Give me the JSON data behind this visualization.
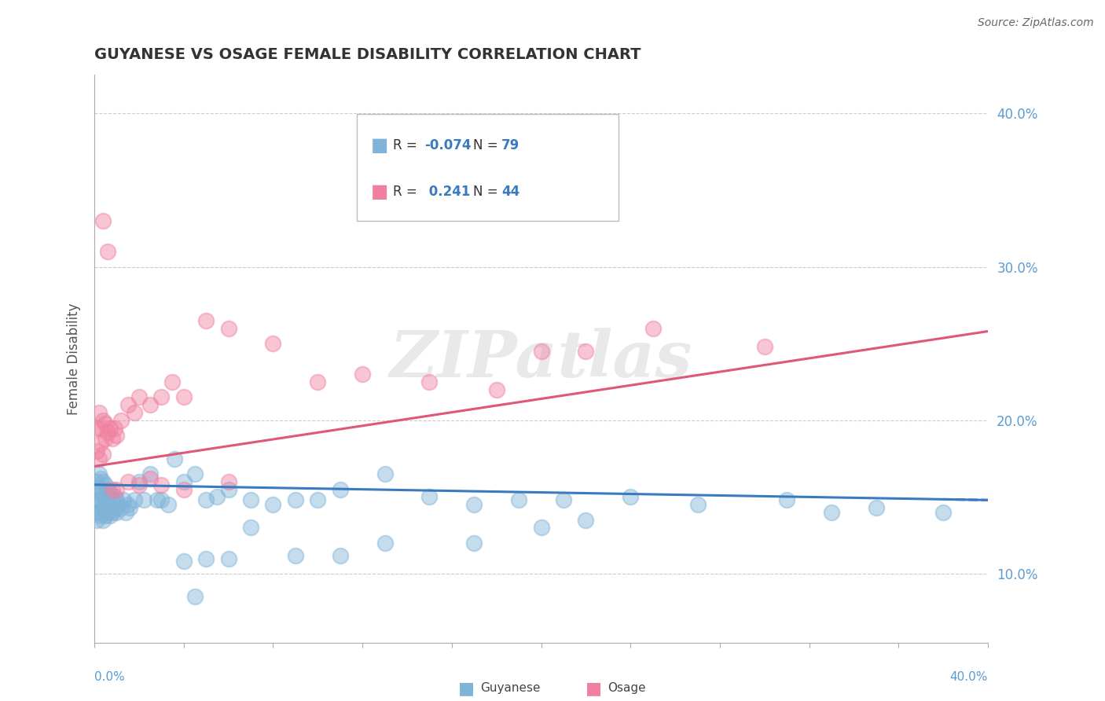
{
  "title": "GUYANESE VS OSAGE FEMALE DISABILITY CORRELATION CHART",
  "source": "Source: ZipAtlas.com",
  "ylabel": "Female Disability",
  "xlim": [
    0.0,
    0.4
  ],
  "ylim": [
    0.055,
    0.425
  ],
  "right_yticks": [
    0.1,
    0.2,
    0.3,
    0.4
  ],
  "right_yticklabels": [
    "10.0%",
    "20.0%",
    "30.0%",
    "40.0%"
  ],
  "guyanese_color": "#7fb3d8",
  "osage_color": "#f080a0",
  "guyanese_line_color": "#3a7bbf",
  "osage_line_color": "#e05878",
  "legend_r_color": "#3a7bbf",
  "legend_n_color": "#3a7bbf",
  "text_color": "#333333",
  "axis_color": "#5b9bd5",
  "spine_color": "#aaaaaa",
  "grid_color": "#cccccc",
  "source_color": "#666666",
  "watermark": "ZIPatlas",
  "guyanese_line_slope": -0.025,
  "guyanese_line_intercept": 0.158,
  "osage_line_slope": 0.22,
  "osage_line_intercept": 0.17,
  "legend_r_guyanese": "-0.074",
  "legend_n_guyanese": "79",
  "legend_r_osage": "0.241",
  "legend_n_osage": "44",
  "guyanese_x": [
    0.001,
    0.001,
    0.001,
    0.001,
    0.001,
    0.002,
    0.002,
    0.002,
    0.002,
    0.003,
    0.003,
    0.003,
    0.003,
    0.004,
    0.004,
    0.004,
    0.004,
    0.005,
    0.005,
    0.005,
    0.005,
    0.006,
    0.006,
    0.006,
    0.007,
    0.007,
    0.007,
    0.008,
    0.008,
    0.009,
    0.009,
    0.01,
    0.01,
    0.011,
    0.012,
    0.013,
    0.014,
    0.015,
    0.016,
    0.018,
    0.02,
    0.022,
    0.025,
    0.028,
    0.03,
    0.033,
    0.036,
    0.04,
    0.045,
    0.05,
    0.055,
    0.06,
    0.07,
    0.08,
    0.09,
    0.1,
    0.11,
    0.13,
    0.15,
    0.17,
    0.19,
    0.21,
    0.24,
    0.27,
    0.31,
    0.35,
    0.38,
    0.045,
    0.06,
    0.2,
    0.22,
    0.17,
    0.33,
    0.13,
    0.09,
    0.07,
    0.11,
    0.05,
    0.04
  ],
  "guyanese_y": [
    0.16,
    0.155,
    0.148,
    0.14,
    0.135,
    0.165,
    0.155,
    0.148,
    0.14,
    0.162,
    0.153,
    0.145,
    0.138,
    0.16,
    0.15,
    0.143,
    0.135,
    0.158,
    0.148,
    0.143,
    0.138,
    0.155,
    0.147,
    0.14,
    0.153,
    0.145,
    0.138,
    0.148,
    0.14,
    0.15,
    0.142,
    0.148,
    0.14,
    0.145,
    0.143,
    0.148,
    0.14,
    0.145,
    0.143,
    0.148,
    0.16,
    0.148,
    0.165,
    0.148,
    0.148,
    0.145,
    0.175,
    0.16,
    0.165,
    0.148,
    0.15,
    0.155,
    0.148,
    0.145,
    0.148,
    0.148,
    0.155,
    0.165,
    0.15,
    0.145,
    0.148,
    0.148,
    0.15,
    0.145,
    0.148,
    0.143,
    0.14,
    0.085,
    0.11,
    0.13,
    0.135,
    0.12,
    0.14,
    0.12,
    0.112,
    0.13,
    0.112,
    0.11,
    0.108
  ],
  "osage_x": [
    0.001,
    0.001,
    0.002,
    0.002,
    0.003,
    0.003,
    0.004,
    0.004,
    0.005,
    0.005,
    0.006,
    0.007,
    0.008,
    0.009,
    0.01,
    0.012,
    0.015,
    0.018,
    0.02,
    0.025,
    0.03,
    0.035,
    0.04,
    0.05,
    0.06,
    0.08,
    0.1,
    0.12,
    0.15,
    0.18,
    0.008,
    0.01,
    0.015,
    0.02,
    0.025,
    0.03,
    0.04,
    0.06,
    0.2,
    0.22,
    0.25,
    0.004,
    0.006,
    0.3
  ],
  "osage_y": [
    0.195,
    0.18,
    0.205,
    0.175,
    0.195,
    0.185,
    0.2,
    0.178,
    0.198,
    0.188,
    0.192,
    0.195,
    0.188,
    0.195,
    0.19,
    0.2,
    0.21,
    0.205,
    0.215,
    0.21,
    0.215,
    0.225,
    0.215,
    0.265,
    0.26,
    0.25,
    0.225,
    0.23,
    0.225,
    0.22,
    0.155,
    0.155,
    0.16,
    0.158,
    0.162,
    0.158,
    0.155,
    0.16,
    0.245,
    0.245,
    0.26,
    0.33,
    0.31,
    0.248
  ]
}
